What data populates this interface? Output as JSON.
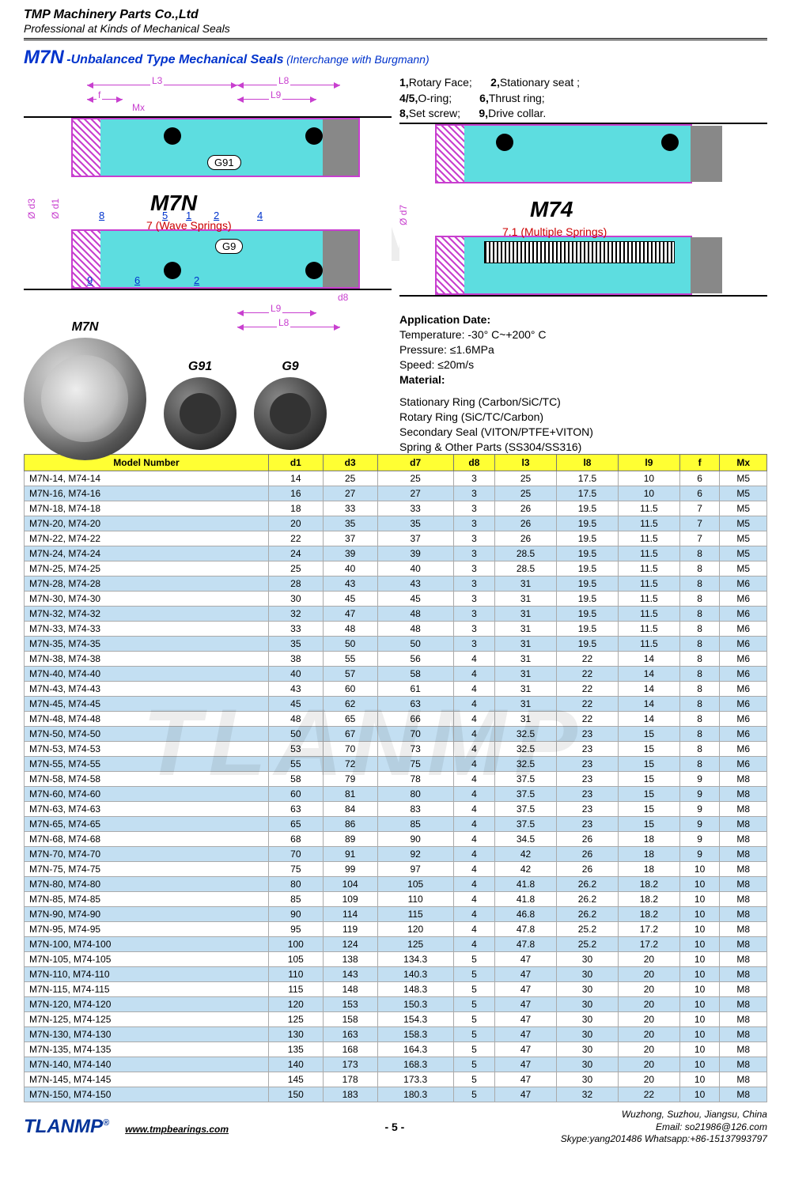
{
  "header": {
    "company": "TMP Machinery Parts Co.,Ltd",
    "tagline": "Professional at Kinds of Mechanical Seals"
  },
  "title": {
    "code": "M7N",
    "desc": "-Unbalanced Type Mechanical Seals",
    "note": "(Interchange with Burgmann)"
  },
  "legend": {
    "i1": "1,",
    "t1": "Rotary Face;",
    "i2": "2,",
    "t2": "Stationary seat ;",
    "i3": "4/5,",
    "t3": "O-ring;",
    "i4": "6,",
    "t4": "Thrust ring;",
    "i5": "8,",
    "t5": "Set screw;",
    "i6": "9,",
    "t6": "Drive collar."
  },
  "diagram": {
    "left_label": "M7N",
    "right_label": "M74",
    "wave": "7 (Wave Springs)",
    "multi": "7.1 (Multiple Springs)",
    "g91": "G91",
    "g9": "G9",
    "dL3": "L3",
    "dL8": "L8",
    "dL9": "L9",
    "df": "f",
    "dMx": "Mx",
    "dd1": "Ø d1",
    "dd3": "Ø d3",
    "dd7": "Ø d7",
    "dd8": "d8",
    "n1": "1",
    "n2": "2",
    "n4": "4",
    "n5": "5",
    "n6": "6",
    "n8": "8",
    "n9": "9"
  },
  "photos": {
    "p1": "M7N",
    "p2": "G91",
    "p3": "G9"
  },
  "app": {
    "head": "Application Date:",
    "l1": "Temperature: -30° C~+200° C",
    "l2": "Pressure: ≤1.6MPa",
    "l3": "Speed: ≤20m/s",
    "l4": "Material:",
    "l5": "Stationary Ring (Carbon/SiC/TC)",
    "l6": "Rotary Ring (SiC/TC/Carbon)",
    "l7": "Secondary Seal (VITON/PTFE+VITON)",
    "l8": "Spring & Other Parts (SS304/SS316)"
  },
  "table": {
    "headers": [
      "Model Number",
      "d1",
      "d3",
      "d7",
      "d8",
      "l3",
      "l8",
      "l9",
      "f",
      "Mx"
    ],
    "rows": [
      [
        "M7N-14, M74-14",
        "14",
        "25",
        "25",
        "3",
        "25",
        "17.5",
        "10",
        "6",
        "M5"
      ],
      [
        "M7N-16, M74-16",
        "16",
        "27",
        "27",
        "3",
        "25",
        "17.5",
        "10",
        "6",
        "M5"
      ],
      [
        "M7N-18, M74-18",
        "18",
        "33",
        "33",
        "3",
        "26",
        "19.5",
        "11.5",
        "7",
        "M5"
      ],
      [
        "M7N-20, M74-20",
        "20",
        "35",
        "35",
        "3",
        "26",
        "19.5",
        "11.5",
        "7",
        "M5"
      ],
      [
        "M7N-22, M74-22",
        "22",
        "37",
        "37",
        "3",
        "26",
        "19.5",
        "11.5",
        "7",
        "M5"
      ],
      [
        "M7N-24, M74-24",
        "24",
        "39",
        "39",
        "3",
        "28.5",
        "19.5",
        "11.5",
        "8",
        "M5"
      ],
      [
        "M7N-25, M74-25",
        "25",
        "40",
        "40",
        "3",
        "28.5",
        "19.5",
        "11.5",
        "8",
        "M5"
      ],
      [
        "M7N-28, M74-28",
        "28",
        "43",
        "43",
        "3",
        "31",
        "19.5",
        "11.5",
        "8",
        "M6"
      ],
      [
        "M7N-30, M74-30",
        "30",
        "45",
        "45",
        "3",
        "31",
        "19.5",
        "11.5",
        "8",
        "M6"
      ],
      [
        "M7N-32, M74-32",
        "32",
        "47",
        "48",
        "3",
        "31",
        "19.5",
        "11.5",
        "8",
        "M6"
      ],
      [
        "M7N-33, M74-33",
        "33",
        "48",
        "48",
        "3",
        "31",
        "19.5",
        "11.5",
        "8",
        "M6"
      ],
      [
        "M7N-35, M74-35",
        "35",
        "50",
        "50",
        "3",
        "31",
        "19.5",
        "11.5",
        "8",
        "M6"
      ],
      [
        "M7N-38, M74-38",
        "38",
        "55",
        "56",
        "4",
        "31",
        "22",
        "14",
        "8",
        "M6"
      ],
      [
        "M7N-40, M74-40",
        "40",
        "57",
        "58",
        "4",
        "31",
        "22",
        "14",
        "8",
        "M6"
      ],
      [
        "M7N-43, M74-43",
        "43",
        "60",
        "61",
        "4",
        "31",
        "22",
        "14",
        "8",
        "M6"
      ],
      [
        "M7N-45, M74-45",
        "45",
        "62",
        "63",
        "4",
        "31",
        "22",
        "14",
        "8",
        "M6"
      ],
      [
        "M7N-48, M74-48",
        "48",
        "65",
        "66",
        "4",
        "31",
        "22",
        "14",
        "8",
        "M6"
      ],
      [
        "M7N-50, M74-50",
        "50",
        "67",
        "70",
        "4",
        "32.5",
        "23",
        "15",
        "8",
        "M6"
      ],
      [
        "M7N-53, M74-53",
        "53",
        "70",
        "73",
        "4",
        "32.5",
        "23",
        "15",
        "8",
        "M6"
      ],
      [
        "M7N-55, M74-55",
        "55",
        "72",
        "75",
        "4",
        "32.5",
        "23",
        "15",
        "8",
        "M6"
      ],
      [
        "M7N-58, M74-58",
        "58",
        "79",
        "78",
        "4",
        "37.5",
        "23",
        "15",
        "9",
        "M8"
      ],
      [
        "M7N-60, M74-60",
        "60",
        "81",
        "80",
        "4",
        "37.5",
        "23",
        "15",
        "9",
        "M8"
      ],
      [
        "M7N-63, M74-63",
        "63",
        "84",
        "83",
        "4",
        "37.5",
        "23",
        "15",
        "9",
        "M8"
      ],
      [
        "M7N-65, M74-65",
        "65",
        "86",
        "85",
        "4",
        "37.5",
        "23",
        "15",
        "9",
        "M8"
      ],
      [
        "M7N-68, M74-68",
        "68",
        "89",
        "90",
        "4",
        "34.5",
        "26",
        "18",
        "9",
        "M8"
      ],
      [
        "M7N-70, M74-70",
        "70",
        "91",
        "92",
        "4",
        "42",
        "26",
        "18",
        "9",
        "M8"
      ],
      [
        "M7N-75, M74-75",
        "75",
        "99",
        "97",
        "4",
        "42",
        "26",
        "18",
        "10",
        "M8"
      ],
      [
        "M7N-80, M74-80",
        "80",
        "104",
        "105",
        "4",
        "41.8",
        "26.2",
        "18.2",
        "10",
        "M8"
      ],
      [
        "M7N-85, M74-85",
        "85",
        "109",
        "110",
        "4",
        "41.8",
        "26.2",
        "18.2",
        "10",
        "M8"
      ],
      [
        "M7N-90, M74-90",
        "90",
        "114",
        "115",
        "4",
        "46.8",
        "26.2",
        "18.2",
        "10",
        "M8"
      ],
      [
        "M7N-95, M74-95",
        "95",
        "119",
        "120",
        "4",
        "47.8",
        "25.2",
        "17.2",
        "10",
        "M8"
      ],
      [
        "M7N-100, M74-100",
        "100",
        "124",
        "125",
        "4",
        "47.8",
        "25.2",
        "17.2",
        "10",
        "M8"
      ],
      [
        "M7N-105, M74-105",
        "105",
        "138",
        "134.3",
        "5",
        "47",
        "30",
        "20",
        "10",
        "M8"
      ],
      [
        "M7N-110, M74-110",
        "110",
        "143",
        "140.3",
        "5",
        "47",
        "30",
        "20",
        "10",
        "M8"
      ],
      [
        "M7N-115, M74-115",
        "115",
        "148",
        "148.3",
        "5",
        "47",
        "30",
        "20",
        "10",
        "M8"
      ],
      [
        "M7N-120, M74-120",
        "120",
        "153",
        "150.3",
        "5",
        "47",
        "30",
        "20",
        "10",
        "M8"
      ],
      [
        "M7N-125, M74-125",
        "125",
        "158",
        "154.3",
        "5",
        "47",
        "30",
        "20",
        "10",
        "M8"
      ],
      [
        "M7N-130, M74-130",
        "130",
        "163",
        "158.3",
        "5",
        "47",
        "30",
        "20",
        "10",
        "M8"
      ],
      [
        "M7N-135, M74-135",
        "135",
        "168",
        "164.3",
        "5",
        "47",
        "30",
        "20",
        "10",
        "M8"
      ],
      [
        "M7N-140, M74-140",
        "140",
        "173",
        "168.3",
        "5",
        "47",
        "30",
        "20",
        "10",
        "M8"
      ],
      [
        "M7N-145, M74-145",
        "145",
        "178",
        "173.3",
        "5",
        "47",
        "30",
        "20",
        "10",
        "M8"
      ],
      [
        "M7N-150, M74-150",
        "150",
        "183",
        "180.3",
        "5",
        "47",
        "32",
        "22",
        "10",
        "M8"
      ]
    ]
  },
  "footer": {
    "logo": "TLANMP",
    "url": "www.tmpbearings.com",
    "page": "- 5 -",
    "c1": "Wuzhong, Suzhou, Jiangsu, China",
    "c2": "Email: so21986@126.com",
    "c3": "Skype:yang201486  Whatsapp:+86-15137993797"
  },
  "wm": "TLANMP"
}
